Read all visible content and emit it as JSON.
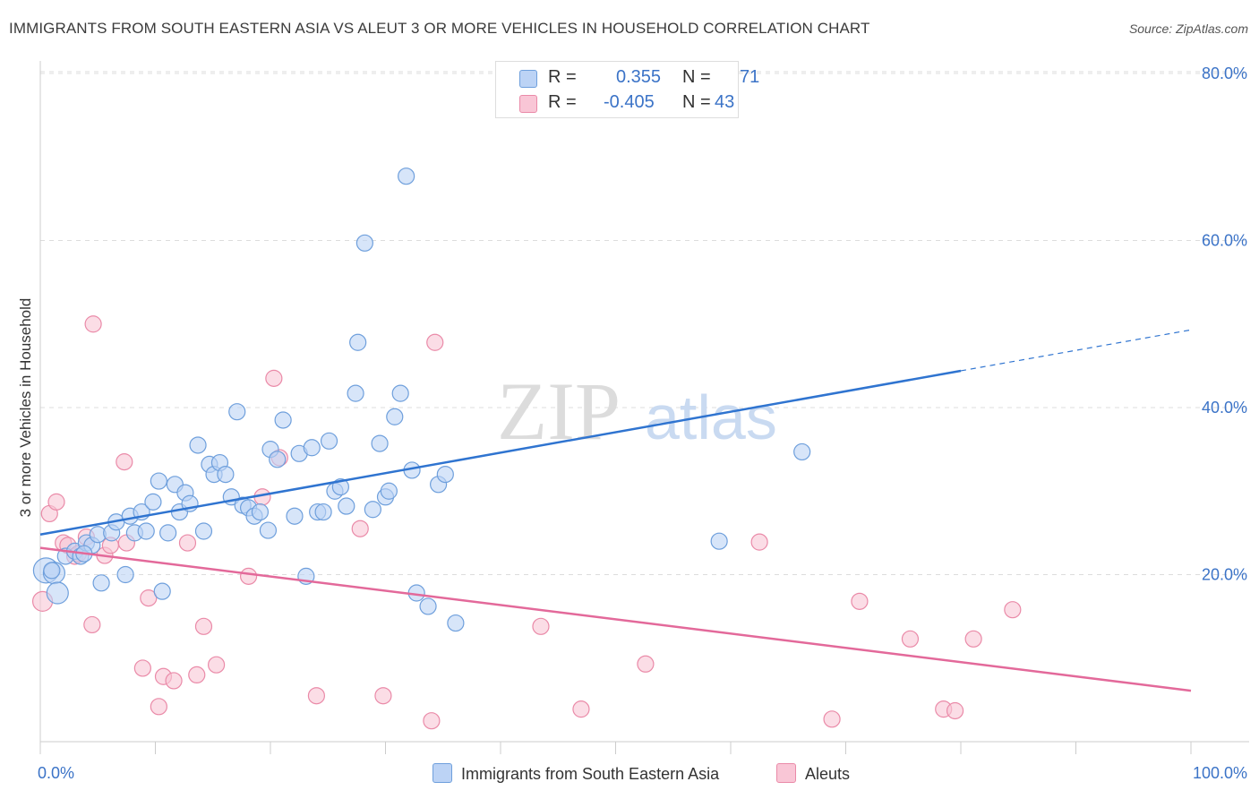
{
  "title": "IMMIGRANTS FROM SOUTH EASTERN ASIA VS ALEUT 3 OR MORE VEHICLES IN HOUSEHOLD CORRELATION CHART",
  "source": "Source: ZipAtlas.com",
  "watermark": {
    "zip": "ZIP",
    "atlas": "atlas"
  },
  "legend": {
    "row1": {
      "r_label": "R =",
      "r_value": "0.355",
      "n_label": "N =",
      "n_value": "71"
    },
    "row2": {
      "r_label": "R =",
      "r_value": "-0.405",
      "n_label": "N =",
      "n_value": "43"
    }
  },
  "colors": {
    "blue_fill": "#bcd3f5",
    "blue_stroke": "#6e9fdc",
    "blue_line": "#2f74d0",
    "pink_fill": "#f9c6d6",
    "pink_stroke": "#ea8aa8",
    "pink_line": "#e3699a",
    "axis_text": "#3b73c7",
    "grid": "#dddddd"
  },
  "chart_data": {
    "type": "scatter",
    "title": "IMMIGRANTS FROM SOUTH EASTERN ASIA VS ALEUT 3 OR MORE VEHICLES IN HOUSEHOLD CORRELATION CHART",
    "xlabel": "",
    "ylabel": "3 or more Vehicles in Household",
    "xlim": [
      0,
      100
    ],
    "ylim": [
      0,
      80
    ],
    "x_tick_labels": [
      "0.0%",
      "100.0%"
    ],
    "y_ticks": [
      20,
      40,
      60,
      80
    ],
    "y_tick_labels": [
      "20.0%",
      "40.0%",
      "60.0%",
      "80.0%"
    ],
    "grid": "horizontal dashed",
    "legend_position": "top-center",
    "series": [
      {
        "name": "Immigrants from South Eastern Asia",
        "color": "blue",
        "points": [
          [
            0.5,
            20.5
          ],
          [
            1.2,
            20.2
          ],
          [
            1.5,
            17.8
          ],
          [
            2.2,
            22.2
          ],
          [
            3.0,
            22.8
          ],
          [
            3.5,
            22.2
          ],
          [
            4.0,
            23.8
          ],
          [
            4.5,
            23.5
          ],
          [
            5.0,
            24.8
          ],
          [
            5.3,
            19.0
          ],
          [
            6.2,
            25.0
          ],
          [
            6.6,
            26.3
          ],
          [
            7.4,
            20.0
          ],
          [
            7.8,
            27.0
          ],
          [
            8.2,
            25.0
          ],
          [
            8.8,
            27.5
          ],
          [
            9.2,
            25.2
          ],
          [
            9.8,
            28.7
          ],
          [
            10.3,
            31.2
          ],
          [
            10.6,
            18.0
          ],
          [
            11.1,
            25.0
          ],
          [
            11.7,
            30.8
          ],
          [
            12.1,
            27.5
          ],
          [
            12.6,
            29.8
          ],
          [
            13.0,
            28.5
          ],
          [
            13.7,
            35.5
          ],
          [
            14.2,
            25.2
          ],
          [
            14.7,
            33.2
          ],
          [
            15.1,
            32.0
          ],
          [
            15.6,
            33.4
          ],
          [
            16.1,
            32.0
          ],
          [
            16.6,
            29.3
          ],
          [
            17.1,
            39.5
          ],
          [
            17.6,
            28.3
          ],
          [
            18.1,
            28.0
          ],
          [
            18.6,
            27.0
          ],
          [
            19.1,
            27.5
          ],
          [
            19.8,
            25.3
          ],
          [
            20.0,
            35.0
          ],
          [
            20.6,
            33.8
          ],
          [
            21.1,
            38.5
          ],
          [
            22.1,
            27.0
          ],
          [
            22.5,
            34.5
          ],
          [
            23.1,
            19.8
          ],
          [
            23.6,
            35.2
          ],
          [
            24.1,
            27.5
          ],
          [
            24.6,
            27.5
          ],
          [
            25.1,
            36.0
          ],
          [
            25.6,
            30.0
          ],
          [
            26.1,
            30.5
          ],
          [
            26.6,
            28.2
          ],
          [
            27.6,
            47.8
          ],
          [
            27.4,
            41.7
          ],
          [
            28.2,
            59.7
          ],
          [
            28.9,
            27.8
          ],
          [
            29.5,
            35.7
          ],
          [
            30.0,
            29.3
          ],
          [
            30.3,
            30.0
          ],
          [
            30.8,
            38.9
          ],
          [
            31.3,
            41.7
          ],
          [
            31.8,
            67.7
          ],
          [
            32.3,
            32.5
          ],
          [
            32.7,
            17.8
          ],
          [
            33.7,
            16.2
          ],
          [
            34.6,
            30.8
          ],
          [
            35.2,
            32.0
          ],
          [
            36.1,
            14.2
          ],
          [
            59.0,
            24.0
          ],
          [
            66.2,
            34.7
          ],
          [
            1.0,
            20.5
          ],
          [
            3.8,
            22.5
          ]
        ],
        "sizes_note": "first few points at x≈0-2 are drawn larger"
      },
      {
        "name": "Aleuts",
        "color": "pink",
        "points": [
          [
            0.2,
            16.8
          ],
          [
            0.8,
            27.3
          ],
          [
            1.4,
            28.7
          ],
          [
            2.0,
            23.8
          ],
          [
            2.4,
            23.5
          ],
          [
            3.0,
            22.2
          ],
          [
            3.3,
            22.5
          ],
          [
            4.0,
            24.5
          ],
          [
            4.5,
            14.0
          ],
          [
            4.6,
            50.0
          ],
          [
            5.6,
            22.3
          ],
          [
            6.1,
            23.5
          ],
          [
            7.3,
            33.5
          ],
          [
            7.5,
            23.8
          ],
          [
            8.9,
            8.8
          ],
          [
            9.4,
            17.2
          ],
          [
            10.3,
            4.2
          ],
          [
            10.7,
            7.8
          ],
          [
            11.6,
            7.3
          ],
          [
            12.8,
            23.8
          ],
          [
            13.6,
            8.0
          ],
          [
            14.2,
            13.8
          ],
          [
            15.3,
            9.2
          ],
          [
            18.1,
            19.8
          ],
          [
            19.3,
            29.3
          ],
          [
            20.3,
            43.5
          ],
          [
            20.8,
            34.0
          ],
          [
            24.0,
            5.5
          ],
          [
            27.8,
            25.5
          ],
          [
            29.8,
            5.5
          ],
          [
            34.3,
            47.8
          ],
          [
            34.0,
            2.5
          ],
          [
            43.5,
            13.8
          ],
          [
            47.0,
            3.9
          ],
          [
            52.6,
            9.3
          ],
          [
            62.5,
            23.9
          ],
          [
            68.8,
            2.7
          ],
          [
            71.2,
            16.8
          ],
          [
            75.6,
            12.3
          ],
          [
            78.5,
            3.9
          ],
          [
            79.5,
            3.7
          ],
          [
            81.1,
            12.3
          ],
          [
            84.5,
            15.8
          ]
        ]
      }
    ],
    "trend_lines": [
      {
        "series": "Immigrants from South Eastern Asia",
        "x_start": 0,
        "y_start": 24.8,
        "x_end": 80,
        "y_end": 44.4,
        "dashed_extension_to": [
          100,
          49.3
        ]
      },
      {
        "series": "Aleuts",
        "x_start": 0,
        "y_start": 23.2,
        "x_end": 100,
        "y_end": 6.1
      }
    ]
  }
}
